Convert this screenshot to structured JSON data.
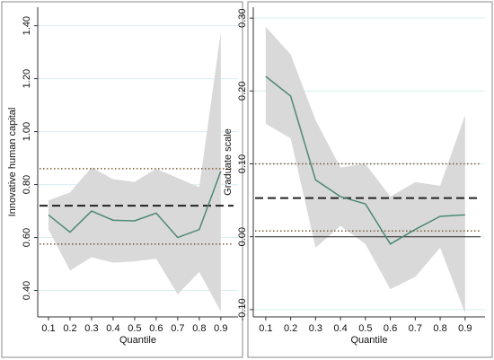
{
  "chart_data": [
    {
      "type": "line",
      "ylabel": "Innovative human capital",
      "xlabel": "Quantile",
      "x": [
        0.1,
        0.2,
        0.3,
        0.4,
        0.5,
        0.6,
        0.7,
        0.8,
        0.9
      ],
      "values": [
        0.685,
        0.62,
        0.7,
        0.665,
        0.663,
        0.692,
        0.6,
        0.63,
        0.85
      ],
      "band": {
        "upper": [
          0.74,
          0.77,
          0.865,
          0.82,
          0.81,
          0.86,
          0.825,
          0.79,
          1.375
        ],
        "lower": [
          0.63,
          0.475,
          0.525,
          0.505,
          0.51,
          0.52,
          0.385,
          0.47,
          0.32
        ]
      },
      "reference_lines": [
        {
          "value": 0.72,
          "style": "dashed"
        },
        {
          "value": 0.86,
          "style": "dotted"
        },
        {
          "value": 0.575,
          "style": "dotted"
        }
      ],
      "line_color": "#4e8a72",
      "band_color": "#d9d9d9",
      "grid": true,
      "xlim": [
        0.05,
        0.98
      ],
      "ylim": [
        0.3,
        1.47
      ],
      "xticks": [
        0.1,
        0.2,
        0.3,
        0.4,
        0.5,
        0.6,
        0.7,
        0.8,
        0.9
      ],
      "yticks": [
        {
          "value": 0.4,
          "label": "0.40"
        },
        {
          "value": 0.6,
          "label": "0.60"
        },
        {
          "value": 0.8,
          "label": "0.80"
        },
        {
          "value": 1.0,
          "label": "1.00"
        },
        {
          "value": 1.2,
          "label": "1.20"
        },
        {
          "value": 1.4,
          "label": "1.40"
        }
      ]
    },
    {
      "type": "line",
      "ylabel": "Graduate scale",
      "xlabel": "Quantile",
      "x": [
        0.1,
        0.2,
        0.3,
        0.4,
        0.5,
        0.6,
        0.7,
        0.8,
        0.9
      ],
      "values": [
        0.22,
        0.193,
        0.078,
        0.055,
        0.045,
        -0.01,
        0.01,
        0.028,
        0.03
      ],
      "band": {
        "upper": [
          0.288,
          0.25,
          0.16,
          0.095,
          0.1,
          0.055,
          0.075,
          0.07,
          0.167
        ],
        "lower": [
          0.155,
          0.135,
          -0.015,
          0.015,
          -0.01,
          -0.072,
          -0.055,
          -0.015,
          -0.105
        ]
      },
      "reference_lines": [
        {
          "value": 0.053,
          "style": "dashed"
        },
        {
          "value": 0.1,
          "style": "dotted"
        },
        {
          "value": 0.008,
          "style": "dotted"
        },
        {
          "value": 0,
          "style": "solid"
        }
      ],
      "line_color": "#4e8a72",
      "band_color": "#d9d9d9",
      "grid": true,
      "xlim": [
        0.05,
        0.98
      ],
      "ylim": [
        -0.11,
        0.315
      ],
      "xticks": [
        0.1,
        0.2,
        0.3,
        0.4,
        0.5,
        0.6,
        0.7,
        0.8,
        0.9
      ],
      "yticks": [
        {
          "value": -0.1,
          "label": "-0.10"
        },
        {
          "value": 0,
          "label": "0.00"
        },
        {
          "value": 0.1,
          "label": "0.10"
        },
        {
          "value": 0.2,
          "label": "0.20"
        },
        {
          "value": 0.3,
          "label": "0.30"
        }
      ]
    }
  ]
}
